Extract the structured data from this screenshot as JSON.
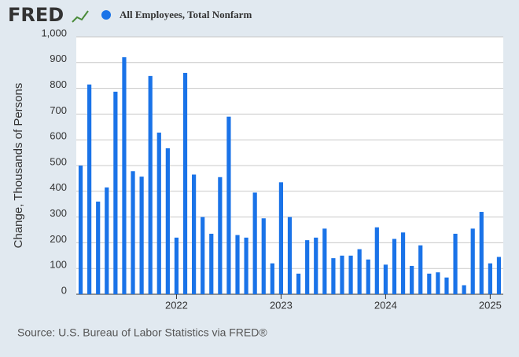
{
  "chart_data": {
    "type": "bar",
    "logo": "FRED",
    "ylabel": "Change, Thousands of Persons",
    "source": "Source: U.S. Bureau of Labor Statistics via FRED®",
    "categories": [
      null,
      null,
      null,
      null,
      null,
      null,
      null,
      null,
      null,
      null,
      null,
      "2022",
      null,
      null,
      null,
      null,
      null,
      null,
      null,
      null,
      null,
      null,
      null,
      "2023",
      null,
      null,
      null,
      null,
      null,
      null,
      null,
      null,
      null,
      null,
      null,
      "2024",
      null,
      null,
      null,
      null,
      null,
      null,
      null,
      null,
      null,
      null,
      null,
      "2025",
      null
    ],
    "series": [
      {
        "name": "All Employees, Total Nonfarm",
        "color": "#1a73e8",
        "values": [
          500,
          815,
          360,
          415,
          787,
          921,
          478,
          457,
          848,
          628,
          567,
          220,
          860,
          465,
          300,
          235,
          455,
          690,
          230,
          220,
          395,
          295,
          120,
          435,
          300,
          80,
          210,
          220,
          255,
          140,
          150,
          150,
          175,
          135,
          260,
          115,
          215,
          240,
          110,
          190,
          80,
          85,
          65,
          235,
          35,
          255,
          320,
          120,
          145
        ]
      }
    ],
    "ylim": [
      0,
      1000
    ],
    "yticks": [
      0,
      100,
      200,
      300,
      400,
      500,
      600,
      700,
      800,
      900,
      {
        "value": 1000,
        "label": "1,000"
      }
    ],
    "grid": true
  }
}
